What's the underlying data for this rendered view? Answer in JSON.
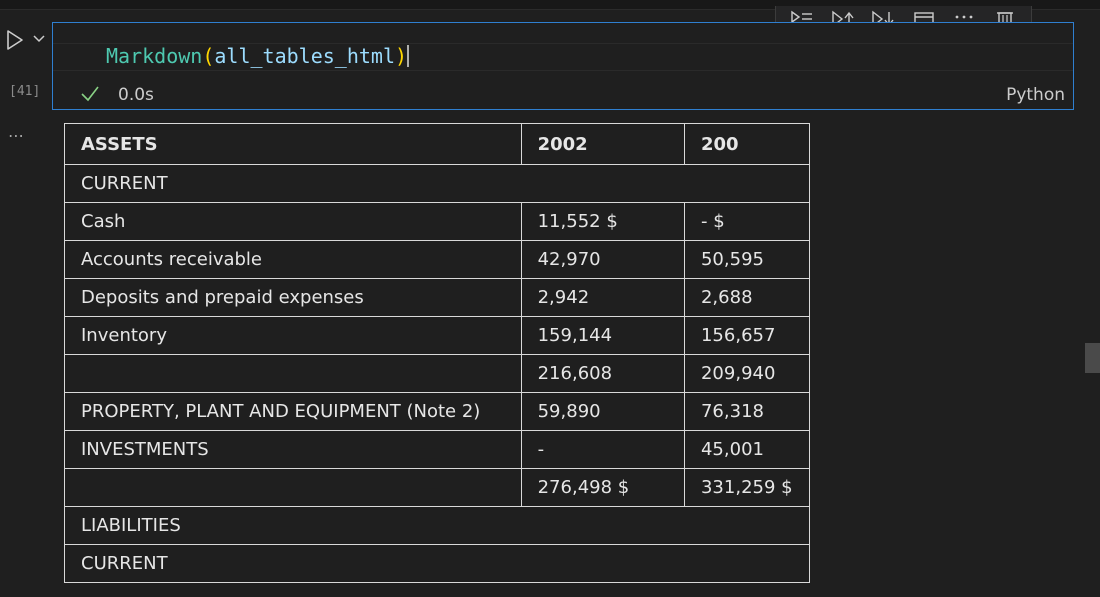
{
  "cell": {
    "execution_count": "[41]",
    "code": {
      "func": "Markdown",
      "open_paren": "(",
      "arg": "all_tables_html",
      "close_paren": ")"
    },
    "exec_time": "0.0s",
    "language": "Python",
    "more_output": "⋯"
  },
  "toolbar": {
    "icons": [
      "execute-above-icon",
      "execute-cell-and-above-icon",
      "execute-cell-and-below-icon",
      "split-cell-icon",
      "more-actions-icon",
      "delete-cell-icon"
    ]
  },
  "table": {
    "headers": [
      "ASSETS",
      "2002",
      "200"
    ],
    "rows": [
      {
        "label": "CURRENT",
        "span": true
      },
      {
        "label": "Cash",
        "v1": "11,552 $",
        "v2": "- $"
      },
      {
        "label": "Accounts receivable",
        "v1": "42,970",
        "v2": "50,595"
      },
      {
        "label": "Deposits and prepaid expenses",
        "v1": "2,942",
        "v2": "2,688"
      },
      {
        "label": "Inventory",
        "v1": "159,144",
        "v2": "156,657"
      },
      {
        "label": "",
        "v1": "216,608",
        "v2": "209,940"
      },
      {
        "label": "PROPERTY, PLANT AND EQUIPMENT (Note 2)",
        "v1": "59,890",
        "v2": "76,318"
      },
      {
        "label": "INVESTMENTS",
        "v1": "-",
        "v2": "45,001"
      },
      {
        "label": "",
        "v1": "276,498 $",
        "v2": "331,259 $"
      },
      {
        "label": "LIABILITIES",
        "span": true
      },
      {
        "label": "CURRENT",
        "span": true
      }
    ]
  },
  "colors": {
    "accent_border": "#2f7fd0",
    "background": "#1f1f1f",
    "success": "#89d185"
  }
}
